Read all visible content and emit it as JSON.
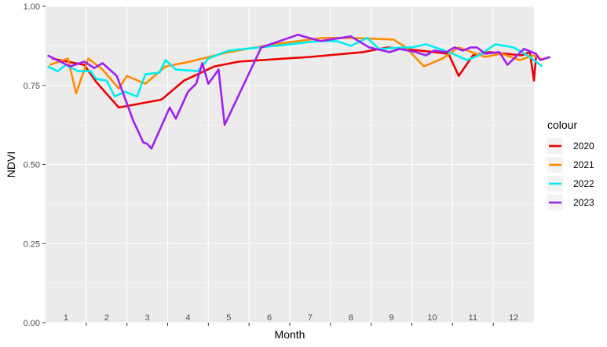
{
  "chart_data": {
    "type": "line",
    "xlabel": "Month",
    "ylabel": "NDVI",
    "xlim": [
      0,
      12
    ],
    "ylim": [
      0,
      1
    ],
    "x_ticks": [
      1,
      2,
      3,
      4,
      5,
      6,
      7,
      8,
      9,
      10,
      11,
      12
    ],
    "y_ticks": [
      0,
      0.25,
      0.5,
      0.75,
      1
    ],
    "y_tick_labels": [
      "0.00",
      "0.25",
      "0.50",
      "0.75",
      "1.00"
    ],
    "grid": true,
    "legend": {
      "title": "colour",
      "position": "right"
    },
    "series": [
      {
        "name": "2020",
        "color": "#ee0000",
        "points": [
          [
            0.15,
            0.835
          ],
          [
            0.95,
            0.815
          ],
          [
            1.25,
            0.76
          ],
          [
            1.8,
            0.68
          ],
          [
            2.85,
            0.705
          ],
          [
            3.4,
            0.765
          ],
          [
            4.15,
            0.81
          ],
          [
            4.75,
            0.825
          ],
          [
            6.5,
            0.84
          ],
          [
            7.8,
            0.855
          ],
          [
            8.4,
            0.87
          ],
          [
            9.2,
            0.86
          ],
          [
            9.55,
            0.855
          ],
          [
            9.9,
            0.85
          ],
          [
            10.15,
            0.78
          ],
          [
            10.5,
            0.845
          ],
          [
            10.9,
            0.855
          ],
          [
            11.3,
            0.85
          ],
          [
            11.7,
            0.845
          ],
          [
            11.9,
            0.855
          ],
          [
            12.0,
            0.765
          ],
          [
            12.05,
            0.84
          ]
        ]
      },
      {
        "name": "2021",
        "color": "#ff8c00",
        "points": [
          [
            0.1,
            0.815
          ],
          [
            0.55,
            0.835
          ],
          [
            0.75,
            0.725
          ],
          [
            1.05,
            0.835
          ],
          [
            1.4,
            0.8
          ],
          [
            1.8,
            0.74
          ],
          [
            2.0,
            0.78
          ],
          [
            2.45,
            0.755
          ],
          [
            2.95,
            0.81
          ],
          [
            3.55,
            0.825
          ],
          [
            4.5,
            0.855
          ],
          [
            5.6,
            0.88
          ],
          [
            6.8,
            0.9
          ],
          [
            7.5,
            0.9
          ],
          [
            8.55,
            0.895
          ],
          [
            8.85,
            0.87
          ],
          [
            9.3,
            0.81
          ],
          [
            9.75,
            0.835
          ],
          [
            10.15,
            0.87
          ],
          [
            10.8,
            0.84
          ],
          [
            11.2,
            0.85
          ],
          [
            11.65,
            0.83
          ],
          [
            12.0,
            0.845
          ],
          [
            12.25,
            0.83
          ]
        ]
      },
      {
        "name": "2022",
        "color": "#00eeee",
        "points": [
          [
            0.05,
            0.81
          ],
          [
            0.3,
            0.795
          ],
          [
            0.5,
            0.815
          ],
          [
            0.8,
            0.795
          ],
          [
            1.1,
            0.795
          ],
          [
            1.25,
            0.77
          ],
          [
            1.5,
            0.765
          ],
          [
            1.7,
            0.715
          ],
          [
            1.95,
            0.73
          ],
          [
            2.25,
            0.715
          ],
          [
            2.45,
            0.785
          ],
          [
            2.8,
            0.79
          ],
          [
            2.95,
            0.83
          ],
          [
            3.2,
            0.8
          ],
          [
            3.75,
            0.795
          ],
          [
            4.0,
            0.835
          ],
          [
            4.5,
            0.86
          ],
          [
            6.0,
            0.88
          ],
          [
            6.7,
            0.89
          ],
          [
            7.15,
            0.89
          ],
          [
            7.5,
            0.875
          ],
          [
            7.9,
            0.9
          ],
          [
            8.2,
            0.865
          ],
          [
            8.8,
            0.87
          ],
          [
            9.0,
            0.87
          ],
          [
            9.35,
            0.88
          ],
          [
            9.8,
            0.86
          ],
          [
            10.0,
            0.85
          ],
          [
            10.35,
            0.83
          ],
          [
            10.65,
            0.845
          ],
          [
            11.05,
            0.88
          ],
          [
            11.5,
            0.87
          ],
          [
            11.9,
            0.84
          ],
          [
            12.2,
            0.81
          ]
        ]
      },
      {
        "name": "2023",
        "color": "#a020f0",
        "points": [
          [
            0.05,
            0.845
          ],
          [
            0.6,
            0.81
          ],
          [
            0.95,
            0.825
          ],
          [
            1.2,
            0.805
          ],
          [
            1.4,
            0.82
          ],
          [
            1.75,
            0.78
          ],
          [
            2.15,
            0.64
          ],
          [
            2.4,
            0.57
          ],
          [
            2.5,
            0.565
          ],
          [
            2.6,
            0.55
          ],
          [
            3.05,
            0.68
          ],
          [
            3.2,
            0.645
          ],
          [
            3.5,
            0.73
          ],
          [
            3.7,
            0.755
          ],
          [
            3.85,
            0.82
          ],
          [
            4.0,
            0.755
          ],
          [
            4.25,
            0.8
          ],
          [
            4.4,
            0.625
          ],
          [
            5.3,
            0.87
          ],
          [
            6.2,
            0.91
          ],
          [
            6.75,
            0.89
          ],
          [
            7.5,
            0.905
          ],
          [
            7.95,
            0.87
          ],
          [
            8.45,
            0.855
          ],
          [
            8.7,
            0.865
          ],
          [
            9.1,
            0.855
          ],
          [
            9.35,
            0.845
          ],
          [
            9.55,
            0.86
          ],
          [
            9.85,
            0.855
          ],
          [
            10.05,
            0.87
          ],
          [
            10.25,
            0.86
          ],
          [
            10.45,
            0.87
          ],
          [
            10.6,
            0.87
          ],
          [
            10.8,
            0.85
          ],
          [
            11.15,
            0.855
          ],
          [
            11.35,
            0.815
          ],
          [
            11.75,
            0.865
          ],
          [
            12.05,
            0.85
          ],
          [
            12.15,
            0.83
          ],
          [
            12.4,
            0.84
          ]
        ]
      }
    ]
  }
}
